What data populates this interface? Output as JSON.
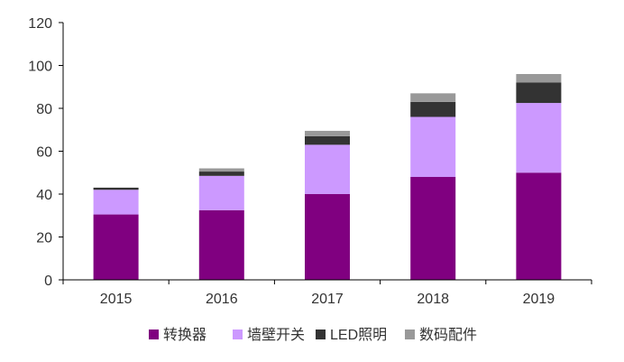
{
  "chart_data": {
    "type": "bar",
    "stacked": true,
    "categories": [
      "2015",
      "2016",
      "2017",
      "2018",
      "2019"
    ],
    "series": [
      {
        "name": "转换器",
        "color": "#800080",
        "values": [
          30.5,
          32.5,
          40,
          48,
          50
        ]
      },
      {
        "name": "墙壁开关",
        "color": "#CC99FF",
        "values": [
          11.5,
          16,
          23,
          28,
          32.5
        ]
      },
      {
        "name": "LED照明",
        "color": "#333333",
        "values": [
          1,
          2,
          4,
          7,
          9.5
        ]
      },
      {
        "name": "数码配件",
        "color": "#999999",
        "values": [
          0,
          1.5,
          2.5,
          4,
          4
        ]
      }
    ],
    "ylim": [
      0,
      120
    ],
    "yticks": [
      0,
      20,
      40,
      60,
      80,
      100,
      120
    ],
    "grid": false,
    "legend_position": "bottom",
    "title": "",
    "xlabel": "",
    "ylabel": ""
  }
}
